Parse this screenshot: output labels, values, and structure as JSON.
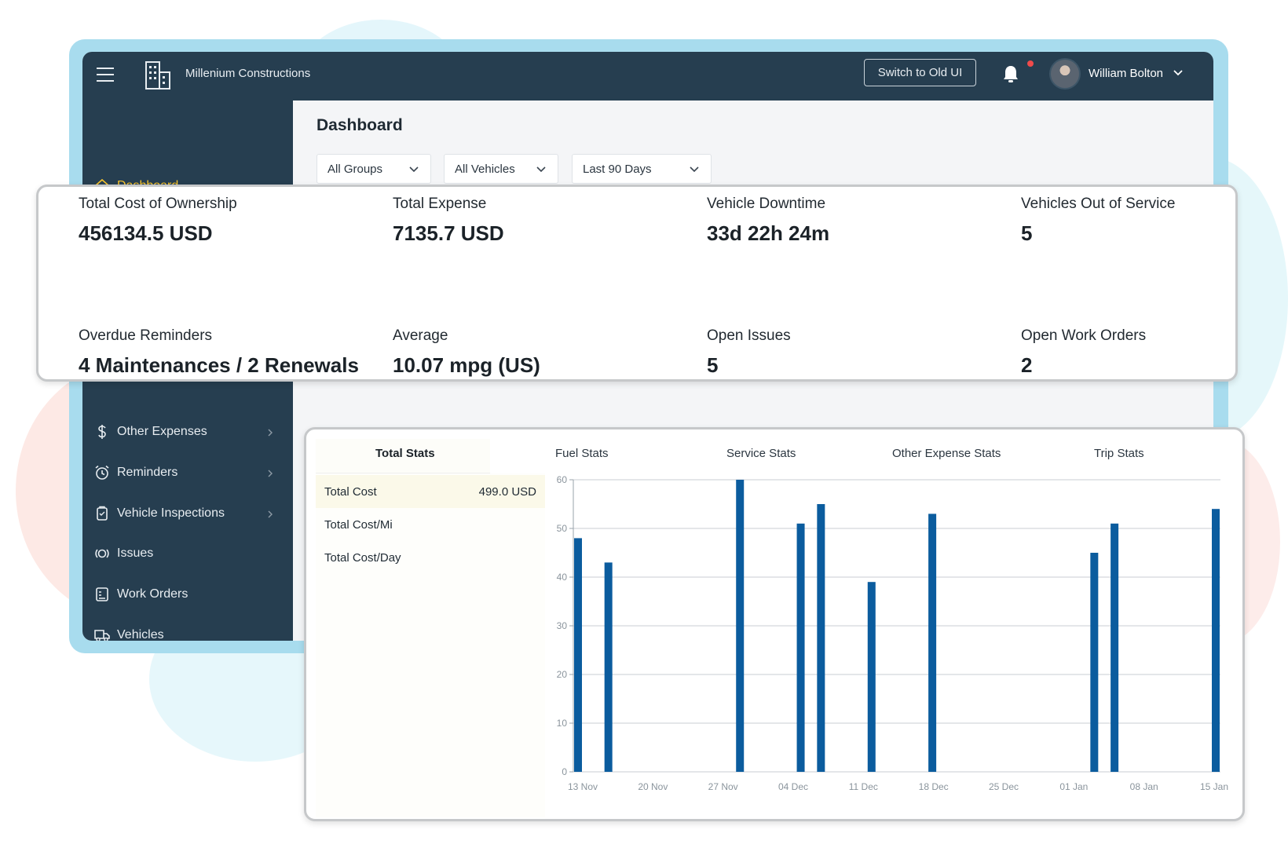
{
  "topbar": {
    "company": "Millenium Constructions",
    "switch_label": "Switch to Old UI",
    "user_name": "William Bolton",
    "notification_dot_color": "#ef4b4b"
  },
  "sidebar": {
    "items": [
      {
        "label": "Dashboard",
        "icon": "home-icon",
        "active": true
      },
      {
        "label": "Other Expenses",
        "icon": "dollar-icon",
        "has_children": true
      },
      {
        "label": "Reminders",
        "icon": "alarm-clock-icon",
        "has_children": true
      },
      {
        "label": "Vehicle Inspections",
        "icon": "clipboard-icon",
        "has_children": true
      },
      {
        "label": "Issues",
        "icon": "issue-icon"
      },
      {
        "label": "Work Orders",
        "icon": "work-order-icon"
      },
      {
        "label": "Vehicles",
        "icon": "truck-icon"
      }
    ],
    "active_color": "#f4c22e"
  },
  "main": {
    "title": "Dashboard",
    "filters": [
      "All Groups",
      "All Vehicles",
      "Last 90 Days"
    ]
  },
  "metrics": [
    {
      "label": "Total Cost of Ownership",
      "value": "456134.5 USD"
    },
    {
      "label": "Total Expense",
      "value": "7135.7 USD"
    },
    {
      "label": "Vehicle Downtime",
      "value": "33d 22h 24m"
    },
    {
      "label": "Vehicles Out of Service",
      "value": "5"
    },
    {
      "label": "Overdue Reminders",
      "value": "4 Maintenances / 2 Renewals"
    },
    {
      "label": "Average",
      "value": "10.07 mpg (US)"
    },
    {
      "label": "Open Issues",
      "value": "5"
    },
    {
      "label": "Open Work Orders",
      "value": "2"
    }
  ],
  "stats": {
    "tabs": [
      "Total Stats",
      "Fuel Stats",
      "Service Stats",
      "Other Expense Stats",
      "Trip Stats"
    ],
    "active_tab": "Total Stats",
    "rows": [
      {
        "label": "Total Cost",
        "value": "499.0 USD"
      },
      {
        "label": "Total Cost/Mi",
        "value": ""
      },
      {
        "label": "Total Cost/Day",
        "value": ""
      }
    ]
  },
  "chart_data": {
    "type": "bar",
    "x_ticks": [
      "13 Nov",
      "20 Nov",
      "27 Nov",
      "04 Dec",
      "11 Dec",
      "18 Dec",
      "25 Dec",
      "01 Jan",
      "08 Jan",
      "15 Jan"
    ],
    "y_ticks": [
      "0",
      "10",
      "20",
      "30",
      "40",
      "50",
      "60"
    ],
    "ylim": [
      0,
      60
    ],
    "x_start": "2023-11-13",
    "x_end": "2024-01-15",
    "bars": [
      {
        "date": "2023-11-13",
        "value": 48
      },
      {
        "date": "2023-11-16",
        "value": 43
      },
      {
        "date": "2023-11-29",
        "value": 60
      },
      {
        "date": "2023-12-05",
        "value": 51
      },
      {
        "date": "2023-12-07",
        "value": 55
      },
      {
        "date": "2023-12-12",
        "value": 39
      },
      {
        "date": "2023-12-18",
        "value": 53
      },
      {
        "date": "2024-01-03",
        "value": 45
      },
      {
        "date": "2024-01-05",
        "value": 51
      },
      {
        "date": "2024-01-15",
        "value": 54
      }
    ],
    "bar_color": "#0b5c9e",
    "grid": true
  }
}
